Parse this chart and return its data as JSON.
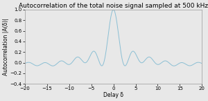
{
  "title": "Autocorrelation of the total noise signal sampled at 500 kHz",
  "xlabel": "Delay δ",
  "ylabel": "Autocorrelation |A(δ)|",
  "xlim": [
    -20,
    20
  ],
  "ylim": [
    -0.4,
    1.0
  ],
  "yticks": [
    -0.4,
    -0.2,
    0.0,
    0.2,
    0.4,
    0.6,
    0.8,
    1.0
  ],
  "xticks": [
    -20,
    -15,
    -10,
    -5,
    0,
    5,
    10,
    15,
    20
  ],
  "line_color": "#8bbfd4",
  "bg_color": "#e8e8e8",
  "title_fontsize": 6.5,
  "label_fontsize": 5.5,
  "tick_fontsize": 5.0,
  "linewidth": 0.7
}
